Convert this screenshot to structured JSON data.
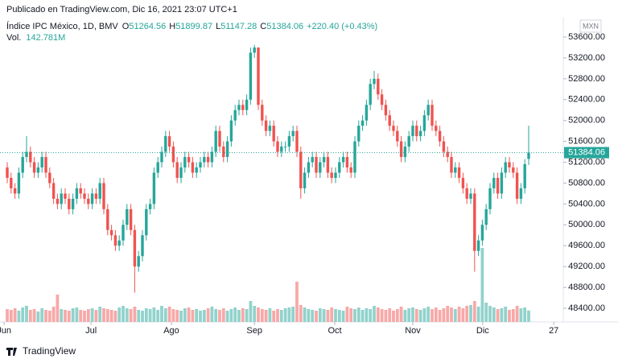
{
  "header": {
    "published": "Publicado en TradingView.com, Dic 16, 2021 23:07 UTC+1"
  },
  "footer": {
    "brand": "TradingView"
  },
  "chart_data": {
    "type": "candlestick",
    "symbol": "Índice IPC México, 1D, BMV",
    "ohlc_labels": [
      "O",
      "H",
      "L",
      "C"
    ],
    "change": "+220.40 (+0.43%)",
    "volume_label": "Vol.",
    "volume_value_label": "142.781M",
    "currency": "MXN",
    "up_color": "#26a69a",
    "down_color": "#ef5350",
    "volume_up_color": "#92d2cc",
    "volume_down_color": "#f7a9a7",
    "grid": false,
    "xlim": [
      -1.875,
      143.96
    ],
    "ylim": [
      48138,
      54310
    ],
    "xticks": [
      {
        "value": -0.8,
        "label": "Jun"
      },
      {
        "value": 21.7,
        "label": "Jul"
      },
      {
        "value": 42.5,
        "label": "Ago"
      },
      {
        "value": 64,
        "label": "Sep"
      },
      {
        "value": 84.8,
        "label": "Oct"
      },
      {
        "value": 105,
        "label": "Nov"
      },
      {
        "value": 123.1,
        "label": "Dic"
      },
      {
        "value": 141.5,
        "label": "27"
      }
    ],
    "yticks": [
      {
        "value": 48400,
        "label": "48400.00"
      },
      {
        "value": 48800,
        "label": "48800.00"
      },
      {
        "value": 49200,
        "label": "49200.00"
      },
      {
        "value": 49600,
        "label": "49600.00"
      },
      {
        "value": 50000,
        "label": "50000.00"
      },
      {
        "value": 50400,
        "label": "50400.00"
      },
      {
        "value": 50800,
        "label": "50800.00"
      },
      {
        "value": 51200,
        "label": "51200.00"
      },
      {
        "value": 51600,
        "label": "51600.00"
      },
      {
        "value": 52000,
        "label": "52000.00"
      },
      {
        "value": 52400,
        "label": "52400.00"
      },
      {
        "value": 52800,
        "label": "52800.00"
      },
      {
        "value": 53200,
        "label": "53200.00"
      },
      {
        "value": 53600,
        "label": "53600.00"
      }
    ],
    "open": [
      51100,
      50900,
      50700,
      50600,
      51000,
      51300,
      51400,
      51200,
      51000,
      51100,
      51300,
      51000,
      50800,
      50500,
      50400,
      50600,
      50500,
      50300,
      50500,
      50700,
      50600,
      50500,
      50400,
      50600,
      50500,
      50800,
      50300,
      49900,
      49800,
      49600,
      49700,
      50000,
      50300,
      49900,
      49200,
      49400,
      49800,
      50300,
      50400,
      51000,
      51200,
      51400,
      51700,
      51500,
      51200,
      50900,
      51100,
      51300,
      51200,
      51000,
      51100,
      51200,
      51300,
      51200,
      51400,
      51800,
      51500,
      51300,
      51600,
      52000,
      52200,
      52300,
      52200,
      52400,
      53300,
      53400,
      52300,
      52000,
      51800,
      51900,
      51600,
      51400,
      51500,
      51500,
      51700,
      51800,
      51400,
      50700,
      51000,
      51200,
      51300,
      51000,
      51200,
      51300,
      51000,
      50900,
      51000,
      51200,
      51300,
      51100,
      51000,
      51600,
      51900,
      52000,
      52300,
      52700,
      52800,
      52500,
      52300,
      52100,
      51900,
      51800,
      51600,
      51300,
      51500,
      51700,
      51900,
      51700,
      51800,
      52100,
      52300,
      51900,
      51800,
      51600,
      51400,
      51300,
      51000,
      51100,
      50900,
      50700,
      50500,
      50600,
      49500,
      49700,
      50000,
      50300,
      50700,
      50900,
      50600,
      51000,
      51200,
      51100,
      51000,
      50500,
      50700,
      51264.56
    ],
    "high": [
      51200,
      51000,
      50800,
      51100,
      51400,
      51700,
      51500,
      51300,
      51200,
      51400,
      51400,
      51100,
      50900,
      50600,
      50700,
      50700,
      50600,
      50600,
      50800,
      50800,
      50700,
      50600,
      50700,
      50700,
      50900,
      50900,
      50400,
      50000,
      49900,
      49800,
      50100,
      50400,
      50400,
      50000,
      49500,
      49900,
      50400,
      50500,
      51100,
      51300,
      51500,
      51800,
      51800,
      51600,
      51300,
      51200,
      51400,
      51400,
      51300,
      51200,
      51300,
      51400,
      51400,
      51500,
      51900,
      51900,
      51600,
      51700,
      52100,
      52300,
      52400,
      52400,
      52500,
      53400,
      53450,
      53400,
      52400,
      52100,
      52000,
      52000,
      51700,
      51600,
      51600,
      51800,
      51900,
      51900,
      51500,
      51100,
      51300,
      51400,
      51400,
      51300,
      51400,
      51400,
      51100,
      51100,
      51300,
      51400,
      51400,
      51200,
      51700,
      52000,
      52100,
      52400,
      52800,
      52950,
      52900,
      52600,
      52400,
      52200,
      52000,
      51900,
      51700,
      51600,
      51800,
      52000,
      52000,
      51900,
      52200,
      52400,
      52400,
      52000,
      51900,
      51700,
      51500,
      51400,
      51200,
      51200,
      51000,
      50800,
      50700,
      50700,
      49800,
      50100,
      50400,
      50800,
      51000,
      51000,
      51100,
      51300,
      51300,
      51200,
      51100,
      50800,
      51260,
      51899.87
    ],
    "low": [
      50800,
      50600,
      50500,
      50500,
      50900,
      51200,
      51100,
      50900,
      50900,
      51000,
      50900,
      50700,
      50400,
      50300,
      50300,
      50400,
      50200,
      50200,
      50400,
      50500,
      50400,
      50300,
      50300,
      50400,
      50400,
      50200,
      49800,
      49700,
      49500,
      49500,
      49600,
      49900,
      49800,
      48700,
      49100,
      49300,
      49700,
      50200,
      50300,
      50900,
      51100,
      51300,
      51400,
      51100,
      50800,
      50800,
      51000,
      51100,
      50900,
      50900,
      51000,
      51100,
      51100,
      51100,
      51300,
      51400,
      51200,
      51200,
      51500,
      51900,
      52100,
      52100,
      52100,
      52300,
      53200,
      52200,
      51900,
      51700,
      51700,
      51500,
      51300,
      51300,
      51400,
      51400,
      51600,
      51300,
      50500,
      50600,
      50900,
      51100,
      50900,
      50900,
      51100,
      50900,
      50800,
      50800,
      50900,
      51100,
      51000,
      50900,
      50900,
      51500,
      51800,
      51900,
      52200,
      52600,
      52400,
      52200,
      52000,
      51800,
      51700,
      51500,
      51200,
      51200,
      51400,
      51600,
      51600,
      51600,
      51700,
      52000,
      51800,
      51700,
      51500,
      51300,
      51200,
      50900,
      50900,
      50800,
      50600,
      50400,
      50400,
      49100,
      49400,
      49600,
      49900,
      50200,
      50600,
      50500,
      50500,
      50900,
      51000,
      50900,
      50400,
      50400,
      50600,
      51147.28
    ],
    "close": [
      50900,
      50700,
      50600,
      51000,
      51300,
      51400,
      51200,
      51000,
      51100,
      51300,
      51000,
      50800,
      50500,
      50400,
      50600,
      50500,
      50300,
      50500,
      50700,
      50600,
      50500,
      50400,
      50600,
      50500,
      50800,
      50300,
      49900,
      49800,
      49600,
      49700,
      50000,
      50300,
      49900,
      49200,
      49400,
      49800,
      50300,
      50400,
      51000,
      51200,
      51400,
      51700,
      51500,
      51200,
      50900,
      51100,
      51300,
      51200,
      51000,
      51100,
      51200,
      51300,
      51200,
      51400,
      51800,
      51500,
      51300,
      51600,
      52000,
      52200,
      52300,
      52200,
      52400,
      53300,
      53400,
      52300,
      52000,
      51800,
      51900,
      51600,
      51400,
      51500,
      51500,
      51700,
      51800,
      51400,
      50700,
      51000,
      51200,
      51300,
      51000,
      51200,
      51300,
      51000,
      50900,
      51000,
      51200,
      51300,
      51100,
      51000,
      51600,
      51900,
      52000,
      52300,
      52700,
      52800,
      52500,
      52300,
      52100,
      51900,
      51800,
      51600,
      51300,
      51500,
      51700,
      51900,
      51700,
      51800,
      52100,
      52300,
      51900,
      51800,
      51600,
      51400,
      51300,
      51000,
      51100,
      50900,
      50700,
      50500,
      50600,
      49500,
      49700,
      50000,
      50300,
      50700,
      50900,
      50600,
      51000,
      51200,
      51100,
      51000,
      50500,
      50700,
      51163.66,
      51384.06
    ],
    "volume": [
      160,
      150,
      170,
      140,
      180,
      200,
      150,
      160,
      130,
      170,
      150,
      140,
      190,
      340,
      160,
      150,
      140,
      170,
      180,
      150,
      140,
      160,
      170,
      150,
      190,
      170,
      160,
      150,
      140,
      180,
      200,
      170,
      160,
      190,
      150,
      140,
      170,
      160,
      180,
      150,
      200,
      170,
      190,
      160,
      150,
      140,
      170,
      180,
      150,
      160,
      140,
      150,
      170,
      190,
      160,
      150,
      170,
      140,
      160,
      180,
      150,
      170,
      160,
      260,
      200,
      180,
      160,
      150,
      170,
      140,
      160,
      150,
      170,
      180,
      190,
      500,
      210,
      180,
      160,
      150,
      140,
      170,
      160,
      150,
      180,
      160,
      150,
      140,
      190,
      170,
      160,
      180,
      150,
      170,
      160,
      200,
      180,
      160,
      150,
      170,
      140,
      160,
      190,
      150,
      170,
      180,
      160,
      150,
      170,
      190,
      160,
      180,
      150,
      170,
      200,
      180,
      160,
      190,
      170,
      200,
      210,
      260,
      190,
      920,
      240,
      200,
      180,
      160,
      170,
      190,
      150,
      160,
      200,
      170,
      180,
      142.781
    ]
  }
}
